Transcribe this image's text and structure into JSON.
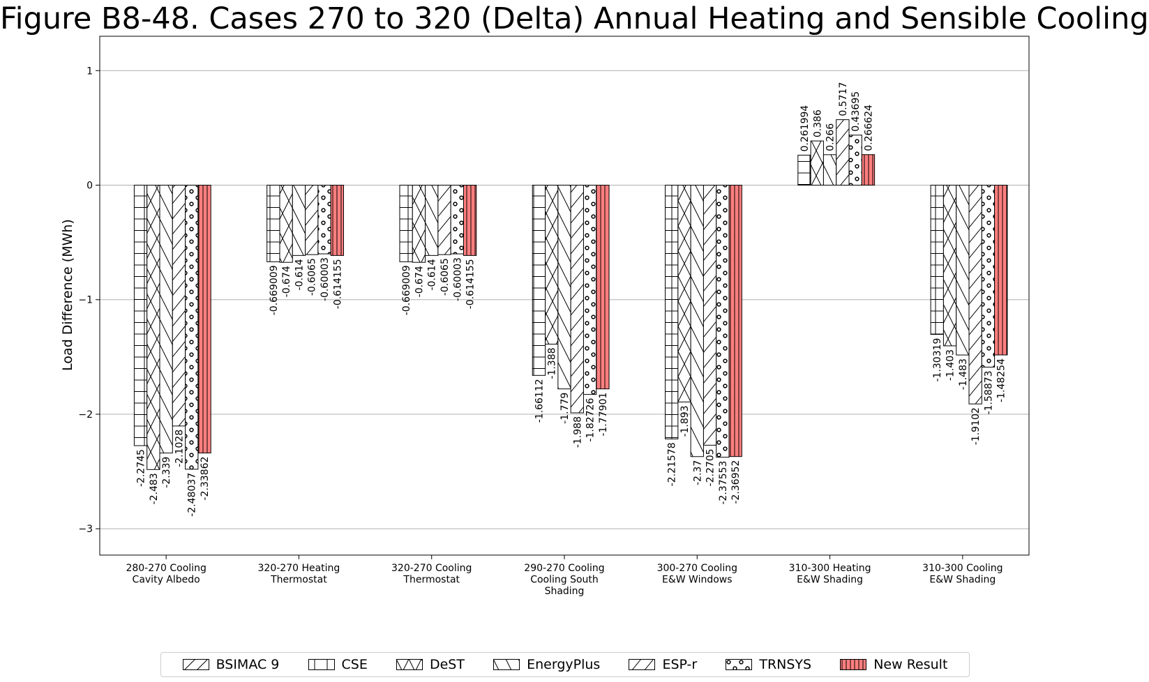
{
  "title": "Figure B8-48. Cases 270 to 320 (Delta) Annual Heating and Sensible Cooling",
  "chart_data": {
    "type": "bar",
    "title": "Figure B8-48. Cases 270 to 320 (Delta) Annual Heating and Sensible Cooling",
    "ylabel": "Load Difference (MWh)",
    "xlabel": "",
    "ylim": [
      -3.23,
      1.3
    ],
    "yticks": [
      1,
      0,
      -1,
      -2,
      -3
    ],
    "ytick_labels": [
      "1",
      "0",
      "−1",
      "−2",
      "−3"
    ],
    "grid": "horizontal",
    "legend_position": "bottom",
    "categories": [
      [
        "280-270 Cooling",
        "Cavity Albedo"
      ],
      [
        "320-270 Heating",
        "Thermostat"
      ],
      [
        "320-270 Cooling",
        "Thermostat"
      ],
      [
        "290-270 Cooling",
        "Cooling South",
        "Shading"
      ],
      [
        "300-270 Cooling",
        "E&W Windows"
      ],
      [
        "310-300 Heating",
        "E&W Shading"
      ],
      [
        "310-300 Cooling",
        "E&W Shading"
      ]
    ],
    "series": [
      {
        "name": "BSIMAC 9",
        "pattern": "hatch-slash",
        "color": "#ffffff",
        "values": [
          null,
          null,
          null,
          null,
          null,
          null,
          null
        ],
        "labels": [
          "",
          "",
          "",
          "",
          "",
          "",
          ""
        ]
      },
      {
        "name": "CSE",
        "pattern": "hatch-grid",
        "color": "#ffffff",
        "values": [
          -2.2745,
          -0.669009,
          -0.669009,
          -1.66112,
          -2.21578,
          0.261994,
          -1.30319
        ],
        "labels": [
          "-2.2745",
          "-0.669009",
          "-0.669009",
          "-1.66112",
          "-2.21578",
          "0.261994",
          "-1.30319"
        ]
      },
      {
        "name": "DeST",
        "pattern": "hatch-x",
        "color": "#ffffff",
        "values": [
          -2.483,
          -0.674,
          -0.674,
          -1.388,
          -1.893,
          0.386,
          -1.403
        ],
        "labels": [
          "-2.483",
          "-0.674",
          "-0.674",
          "-1.388",
          "-1.893",
          "0.386",
          "-1.403"
        ]
      },
      {
        "name": "EnergyPlus",
        "pattern": "hatch-backslash",
        "color": "#ffffff",
        "values": [
          -2.339,
          -0.614,
          -0.614,
          -1.779,
          -2.37,
          0.266,
          -1.483
        ],
        "labels": [
          "-2.339",
          "-0.614",
          "-0.614",
          "-1.779",
          "-2.37",
          "0.266",
          "-1.483"
        ]
      },
      {
        "name": "ESP-r",
        "pattern": "hatch-dslash",
        "color": "#ffffff",
        "values": [
          -2.1028,
          -0.6065,
          -0.6065,
          -1.988,
          -2.2705,
          0.5717,
          -1.9102
        ],
        "labels": [
          "-2.1028",
          "-0.6065",
          "-0.6065",
          "-1.988",
          "-2.2705",
          "0.5717",
          "-1.9102"
        ]
      },
      {
        "name": "TRNSYS",
        "pattern": "hatch-circles",
        "color": "#ffffff",
        "values": [
          -2.48037,
          -0.60003,
          -0.60003,
          -1.82726,
          -2.37553,
          0.43695,
          -1.58873
        ],
        "labels": [
          "-2.48037",
          "-0.60003",
          "-0.60003",
          "-1.82726",
          "-2.37553",
          "0.43695",
          "-1.58873"
        ]
      },
      {
        "name": "New Result",
        "pattern": "hatch-vertical",
        "color": "#ff7f7f",
        "values": [
          -2.33862,
          -0.614155,
          -0.614155,
          -1.77901,
          -2.36952,
          0.266624,
          -1.48254
        ],
        "labels": [
          "-2.33862",
          "-0.614155",
          "-0.614155",
          "-1.77901",
          "-2.36952",
          "0.266624",
          "-1.48254"
        ]
      }
    ]
  }
}
